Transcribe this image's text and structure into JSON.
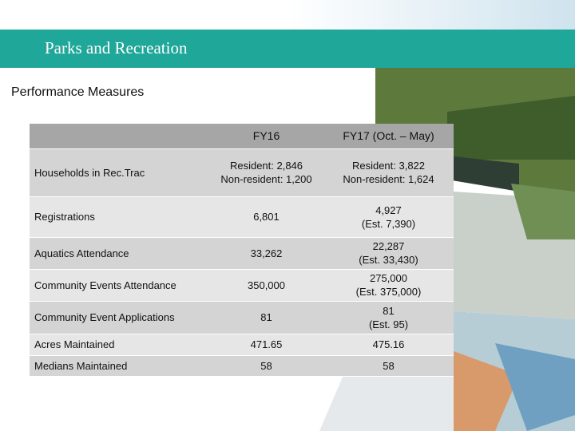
{
  "header": {
    "title": "Parks and Recreation"
  },
  "subtitle": "Performance Measures",
  "table": {
    "columns": [
      "",
      "FY16",
      "FY17 (Oct. – May)"
    ],
    "rows": [
      [
        "Households in Rec.Trac",
        [
          "Resident: 2,846",
          "Non-resident: 1,200"
        ],
        [
          "Resident: 3,822",
          "Non-resident: 1,624"
        ]
      ],
      [
        "Registrations",
        [
          "6,801"
        ],
        [
          "4,927",
          "(Est. 7,390)"
        ]
      ],
      [
        "Aquatics Attendance",
        [
          "33,262"
        ],
        [
          "22,287",
          "(Est. 33,430)"
        ]
      ],
      [
        "Community Events Attendance",
        [
          "350,000"
        ],
        [
          "275,000",
          "(Est. 375,000)"
        ]
      ],
      [
        "Community Event Applications",
        [
          "81"
        ],
        [
          "81",
          "(Est. 95)"
        ]
      ],
      [
        "Acres Maintained",
        [
          "471.65"
        ],
        [
          "475.16"
        ]
      ],
      [
        "Medians Maintained",
        [
          "58"
        ],
        [
          "58"
        ]
      ]
    ]
  }
}
